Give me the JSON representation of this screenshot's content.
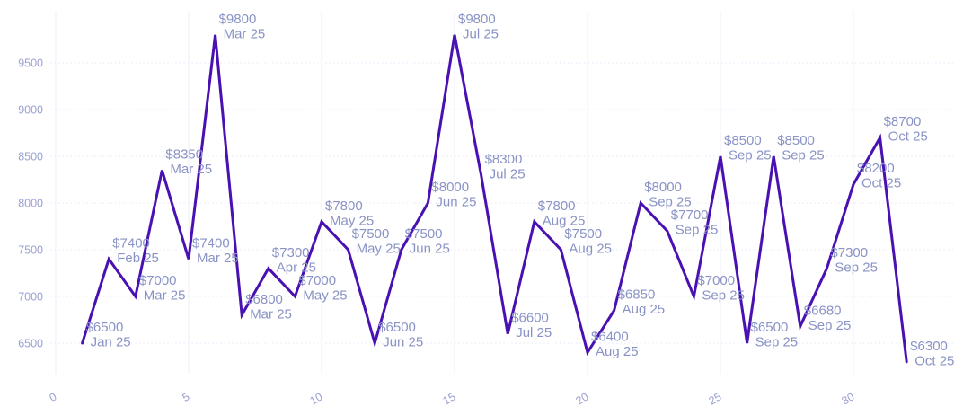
{
  "chart_data": {
    "type": "line",
    "title": "",
    "xlabel": "",
    "ylabel": "",
    "legend": "none",
    "grid": "on",
    "line_color": "#4a11b2",
    "point_label_color": "#8a93c5",
    "axis_label_color": "#99a0d4",
    "h_gridline_color": "#e6e8f7",
    "v_gridline_color": "#ecedf9",
    "background_color": "#ffffff",
    "ylim": [
      6000,
      10000
    ],
    "xlim": [
      0,
      33
    ],
    "yticks": [
      6500,
      7000,
      7500,
      8000,
      8500,
      9000,
      9500
    ],
    "xticks": [
      0,
      5,
      10,
      15,
      20,
      25,
      30
    ],
    "points": [
      {
        "x": 1,
        "value": 6500,
        "label": "$6500",
        "date": "Jan 25"
      },
      {
        "x": 2,
        "value": 7400,
        "label": "$7400",
        "date": "Feb 25"
      },
      {
        "x": 3,
        "value": 7000,
        "label": "$7000",
        "date": "Mar 25"
      },
      {
        "x": 4,
        "value": 8350,
        "label": "$8350",
        "date": "Mar 25"
      },
      {
        "x": 5,
        "value": 7400,
        "label": "$7400",
        "date": "Mar 25"
      },
      {
        "x": 6,
        "value": 9800,
        "label": "$9800",
        "date": "Mar 25"
      },
      {
        "x": 7,
        "value": 6800,
        "label": "$6800",
        "date": "Mar 25"
      },
      {
        "x": 8,
        "value": 7300,
        "label": "$7300",
        "date": "Apr 25"
      },
      {
        "x": 9,
        "value": 7000,
        "label": "$7000",
        "date": "May 25"
      },
      {
        "x": 10,
        "value": 7800,
        "label": "$7800",
        "date": "May 25"
      },
      {
        "x": 11,
        "value": 7500,
        "label": "$7500",
        "date": "May 25"
      },
      {
        "x": 12,
        "value": 6500,
        "label": "$6500",
        "date": "Jun 25"
      },
      {
        "x": 13,
        "value": 7500,
        "label": "$7500",
        "date": "Jun 25"
      },
      {
        "x": 14,
        "value": 8000,
        "label": "$8000",
        "date": "Jun 25"
      },
      {
        "x": 15,
        "value": 9800,
        "label": "$9800",
        "date": "Jul 25"
      },
      {
        "x": 16,
        "value": 8300,
        "label": "$8300",
        "date": "Jul 25"
      },
      {
        "x": 17,
        "value": 6600,
        "label": "$6600",
        "date": "Jul 25"
      },
      {
        "x": 18,
        "value": 7800,
        "label": "$7800",
        "date": "Aug 25"
      },
      {
        "x": 19,
        "value": 7500,
        "label": "$7500",
        "date": "Aug 25"
      },
      {
        "x": 20,
        "value": 6400,
        "label": "$6400",
        "date": "Aug 25"
      },
      {
        "x": 21,
        "value": 6850,
        "label": "$6850",
        "date": "Aug 25"
      },
      {
        "x": 22,
        "value": 8000,
        "label": "$8000",
        "date": "Sep 25"
      },
      {
        "x": 23,
        "value": 7700,
        "label": "$7700",
        "date": "Sep 25"
      },
      {
        "x": 24,
        "value": 7000,
        "label": "$7000",
        "date": "Sep 25"
      },
      {
        "x": 25,
        "value": 8500,
        "label": "$8500",
        "date": "Sep 25"
      },
      {
        "x": 26,
        "value": 6500,
        "label": "$6500",
        "date": "Sep 25"
      },
      {
        "x": 27,
        "value": 8500,
        "label": "$8500",
        "date": "Sep 25"
      },
      {
        "x": 28,
        "value": 6680,
        "label": "$6680",
        "date": "Sep 25"
      },
      {
        "x": 29,
        "value": 7300,
        "label": "$7300",
        "date": "Sep 25"
      },
      {
        "x": 30,
        "value": 8200,
        "label": "$8200",
        "date": "Oct 25"
      },
      {
        "x": 31,
        "value": 8700,
        "label": "$8700",
        "date": "Oct 25"
      },
      {
        "x": 32,
        "value": 6300,
        "label": "$6300",
        "date": "Oct 25"
      }
    ]
  }
}
